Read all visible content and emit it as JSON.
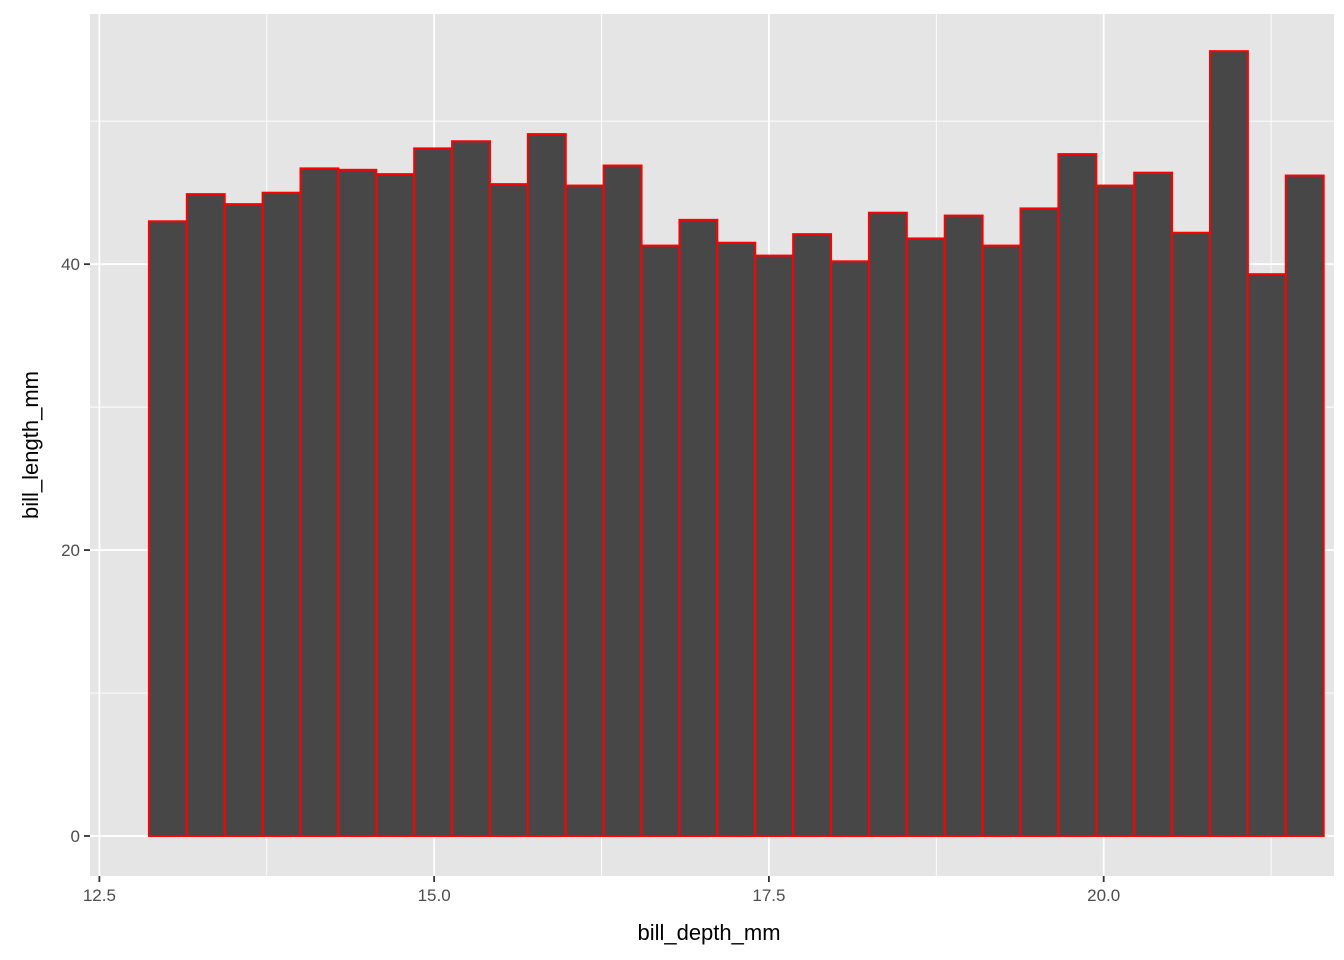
{
  "chart_data": {
    "type": "bar",
    "xlabel": "bill_depth_mm",
    "ylabel": "bill_length_mm",
    "xlim": [
      12.43,
      21.72
    ],
    "ylim": [
      -2.8,
      57.5
    ],
    "x_ticks": [
      12.5,
      15.0,
      17.5,
      20.0
    ],
    "x_tick_labels": [
      "12.5",
      "15.0",
      "17.5",
      "20.0"
    ],
    "y_ticks": [
      0,
      20,
      40
    ],
    "y_tick_labels": [
      "0",
      "20",
      "40"
    ],
    "grid": true,
    "bin_width": 0.283,
    "bin_start": 12.87,
    "values": [
      43.0,
      44.9,
      44.2,
      45.0,
      46.7,
      46.6,
      46.3,
      48.1,
      48.6,
      45.6,
      49.1,
      45.5,
      46.9,
      41.3,
      43.1,
      41.5,
      40.6,
      42.1,
      40.2,
      43.6,
      41.8,
      43.4,
      41.3,
      43.9,
      47.7,
      45.5,
      46.4,
      42.2,
      54.9,
      39.3,
      46.2
    ],
    "colors": {
      "panel": "#e5e5e5",
      "grid": "#ffffff",
      "bar_fill": "#474747",
      "bar_outline": "#ff0000",
      "tick": "#333333"
    }
  }
}
